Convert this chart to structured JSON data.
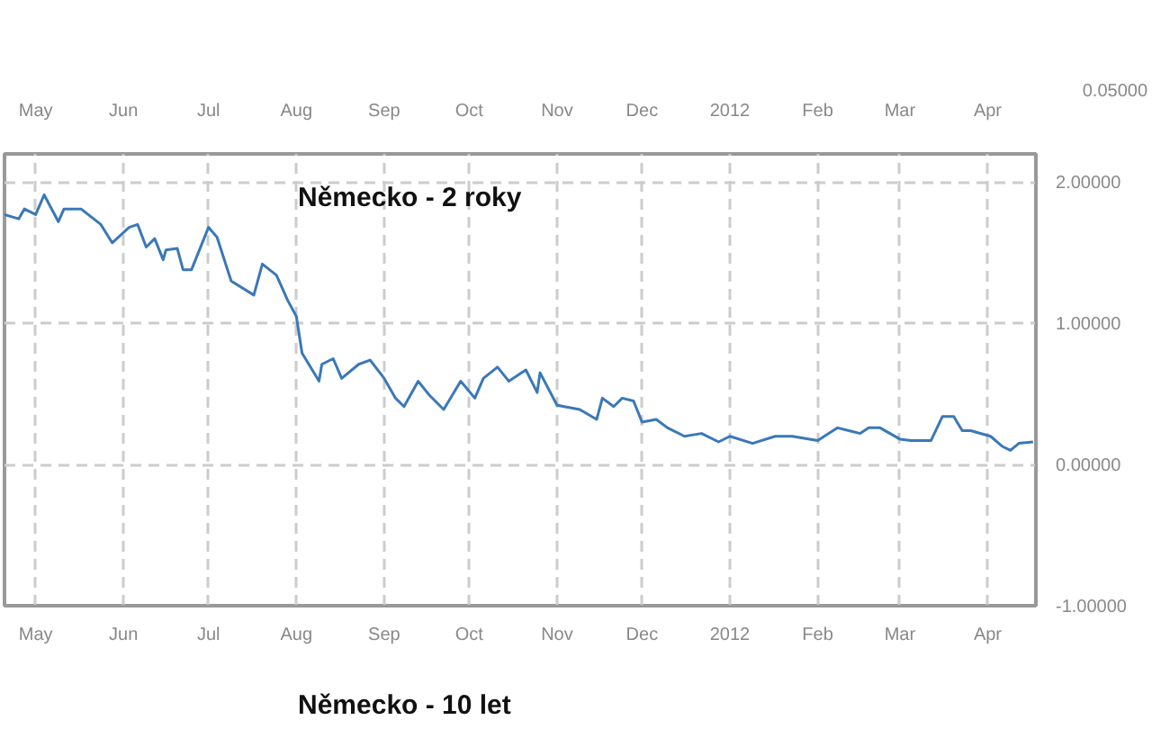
{
  "chart_data": {
    "type": "line",
    "title": "Německo - 2 roky",
    "x": [
      "2011-04-20",
      "2011-04-25",
      "2011-04-27",
      "2011-05-01",
      "2011-05-04",
      "2011-05-09",
      "2011-05-11",
      "2011-05-17",
      "2011-05-24",
      "2011-05-28",
      "2011-06-03",
      "2011-06-06",
      "2011-06-09",
      "2011-06-12",
      "2011-06-15",
      "2011-06-16",
      "2011-06-20",
      "2011-06-22",
      "2011-06-25",
      "2011-07-01",
      "2011-07-04",
      "2011-07-09",
      "2011-07-17",
      "2011-07-20",
      "2011-07-25",
      "2011-07-29",
      "2011-08-01",
      "2011-08-03",
      "2011-08-09",
      "2011-08-10",
      "2011-08-14",
      "2011-08-17",
      "2011-08-23",
      "2011-08-27",
      "2011-09-01",
      "2011-09-05",
      "2011-09-08",
      "2011-09-13",
      "2011-09-17",
      "2011-09-22",
      "2011-09-28",
      "2011-10-03",
      "2011-10-06",
      "2011-10-11",
      "2011-10-15",
      "2011-10-21",
      "2011-10-25",
      "2011-10-26",
      "2011-11-01",
      "2011-11-09",
      "2011-11-15",
      "2011-11-17",
      "2011-11-21",
      "2011-11-24",
      "2011-11-28",
      "2011-12-01",
      "2011-12-06",
      "2011-12-10",
      "2011-12-16",
      "2011-12-22",
      "2011-12-28",
      "2012-01-01",
      "2012-01-09",
      "2012-01-17",
      "2012-01-23",
      "2012-02-01",
      "2012-02-08",
      "2012-02-12",
      "2012-02-16",
      "2012-02-19",
      "2012-02-23",
      "2012-03-01",
      "2012-03-05",
      "2012-03-12",
      "2012-03-16",
      "2012-03-20",
      "2012-03-23",
      "2012-03-26",
      "2012-04-02",
      "2012-04-06",
      "2012-04-09",
      "2012-04-12",
      "2012-04-17"
    ],
    "series": [
      {
        "color": "#3a78b8",
        "values": [
          1.77,
          1.74,
          1.81,
          1.77,
          1.91,
          1.72,
          1.81,
          1.81,
          1.7,
          1.57,
          1.68,
          1.7,
          1.54,
          1.6,
          1.45,
          1.52,
          1.53,
          1.38,
          1.38,
          1.68,
          1.61,
          1.3,
          1.2,
          1.42,
          1.34,
          1.16,
          1.05,
          0.79,
          0.59,
          0.71,
          0.75,
          0.61,
          0.71,
          0.74,
          0.61,
          0.47,
          0.41,
          0.59,
          0.49,
          0.39,
          0.59,
          0.47,
          0.61,
          0.69,
          0.59,
          0.67,
          0.51,
          0.65,
          0.42,
          0.39,
          0.32,
          0.47,
          0.41,
          0.47,
          0.45,
          0.3,
          0.32,
          0.26,
          0.2,
          0.22,
          0.16,
          0.2,
          0.15,
          0.2,
          0.2,
          0.17,
          0.26,
          0.24,
          0.22,
          0.26,
          0.26,
          0.18,
          0.17,
          0.17,
          0.34,
          0.34,
          0.24,
          0.24,
          0.2,
          0.13,
          0.1,
          0.15,
          0.16
        ]
      }
    ],
    "xlim": [
      "2011-04-20",
      "2012-04-18"
    ],
    "xticks": [
      {
        "value": "2011-05-01",
        "label": "May"
      },
      {
        "value": "2011-06-01",
        "label": "Jun"
      },
      {
        "value": "2011-07-01",
        "label": "Jul"
      },
      {
        "value": "2011-08-01",
        "label": "Aug"
      },
      {
        "value": "2011-09-01",
        "label": "Sep"
      },
      {
        "value": "2011-10-01",
        "label": "Oct"
      },
      {
        "value": "2011-11-01",
        "label": "Nov"
      },
      {
        "value": "2011-12-01",
        "label": "Dec"
      },
      {
        "value": "2012-01-01",
        "label": "2012"
      },
      {
        "value": "2012-02-01",
        "label": "Feb"
      },
      {
        "value": "2012-03-01",
        "label": "Mar"
      },
      {
        "value": "2012-04-01",
        "label": "Apr"
      }
    ],
    "x2lim": [
      "2011-04-20",
      "2012-04-18"
    ],
    "x2ticks": [
      {
        "value": "2011-05-01",
        "label": "May"
      },
      {
        "value": "2011-06-01",
        "label": "Jun"
      },
      {
        "value": "2011-07-01",
        "label": "Jul"
      },
      {
        "value": "2011-08-01",
        "label": "Aug"
      },
      {
        "value": "2011-09-01",
        "label": "Sep"
      },
      {
        "value": "2011-10-01",
        "label": "Oct"
      },
      {
        "value": "2011-11-01",
        "label": "Nov"
      },
      {
        "value": "2011-12-01",
        "label": "Dec"
      },
      {
        "value": "2012-01-01",
        "label": "2012"
      },
      {
        "value": "2012-02-01",
        "label": "Feb"
      },
      {
        "value": "2012-03-01",
        "label": "Mar"
      },
      {
        "value": "2012-04-01",
        "label": "Apr"
      }
    ],
    "ylim": [
      -1,
      2.2
    ],
    "yticks": [
      {
        "value": -1,
        "label": "-1.00000"
      },
      {
        "value": 0,
        "label": "0.00000"
      },
      {
        "value": 1,
        "label": "1.00000"
      },
      {
        "value": 2,
        "label": "2.00000"
      }
    ],
    "grid": true,
    "annotations": [
      "0.05000",
      "Německo - 10 let"
    ]
  }
}
